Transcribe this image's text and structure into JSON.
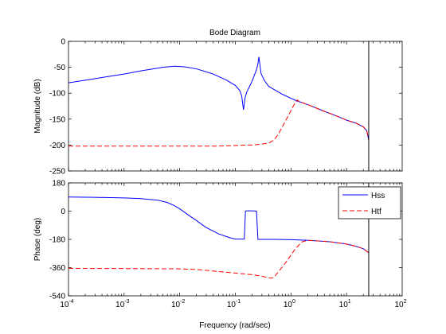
{
  "chart_data": {
    "type": "line",
    "title": "Bode Diagram",
    "xlabel": "Frequency  (rad/sec)",
    "x_scale": "log",
    "xlim": [
      0.0001,
      100
    ],
    "x_tick_labels": [
      {
        "base": "10",
        "exp": "-4"
      },
      {
        "base": "10",
        "exp": "-3"
      },
      {
        "base": "10",
        "exp": "-2"
      },
      {
        "base": "10",
        "exp": "-1"
      },
      {
        "base": "10",
        "exp": "0"
      },
      {
        "base": "10",
        "exp": "1"
      },
      {
        "base": "10",
        "exp": "2"
      }
    ],
    "legend": {
      "placement": "top-right",
      "entries": [
        "Hss",
        "Htf"
      ]
    },
    "grid": false,
    "vertical_marker_x": 25,
    "series_styles": [
      {
        "color": "#0000ff",
        "dash": "solid"
      },
      {
        "color": "#ff0000",
        "dash": "dashed"
      }
    ],
    "subplots": [
      {
        "ylabel": "Magnitude (dB)",
        "ylim": [
          -250,
          0
        ],
        "yticks": [
          0,
          -50,
          -100,
          -150,
          -200,
          -250
        ],
        "series": [
          {
            "x": [
              0.0001,
              0.0002,
              0.0005,
              0.001,
              0.002,
              0.005,
              0.008,
              0.012,
              0.02,
              0.04,
              0.07,
              0.1,
              0.12,
              0.13,
              0.14,
              0.15,
              0.16,
              0.18,
              0.2,
              0.22,
              0.24,
              0.255,
              0.265,
              0.275,
              0.29,
              0.33,
              0.4,
              0.5,
              0.7,
              1,
              1.3,
              2,
              4,
              7,
              10,
              15,
              20,
              23,
              25
            ],
            "y": [
              -80,
              -75,
              -68,
              -63,
              -57,
              -50,
              -48,
              -49,
              -53,
              -63,
              -75,
              -85,
              -95,
              -105,
              -132,
              -108,
              -98,
              -87,
              -77,
              -65,
              -55,
              -43,
              -30,
              -43,
              -62,
              -75,
              -87,
              -93,
              -102,
              -110,
              -115,
              -122,
              -135,
              -145,
              -152,
              -158,
              -165,
              -172,
              -190
            ]
          },
          {
            "x": [
              0.0001,
              0.001,
              0.01,
              0.05,
              0.1,
              0.15,
              0.2,
              0.25,
              0.3,
              0.4,
              0.5,
              0.6,
              0.7,
              0.8,
              0.9,
              1.0,
              1.1,
              1.2,
              1.3,
              1.4,
              2,
              4,
              7,
              10,
              15,
              20,
              23,
              25
            ],
            "y": [
              -202,
              -202,
              -202,
              -202,
              -201,
              -200,
              -200,
              -199,
              -198,
              -196,
              -190,
              -178,
              -165,
              -153,
              -143,
              -133,
              -125,
              -118,
              -113,
              -116,
              -122,
              -135,
              -145,
              -152,
              -158,
              -165,
              -172,
              -190
            ]
          }
        ]
      },
      {
        "ylabel": "Phase (deg)",
        "ylim": [
          -540,
          180
        ],
        "yticks": [
          180,
          0,
          -180,
          -360,
          -540
        ],
        "series": [
          {
            "x": [
              0.0001,
              0.0003,
              0.001,
              0.002,
              0.004,
              0.006,
              0.008,
              0.01,
              0.015,
              0.02,
              0.03,
              0.05,
              0.08,
              0.1,
              0.145,
              0.152,
              0.16,
              0.2,
              0.24,
              0.255,
              0.265,
              0.3,
              0.5,
              1,
              2,
              5,
              10,
              15,
              20,
              25
            ],
            "y": [
              90,
              88,
              84,
              80,
              70,
              55,
              35,
              15,
              -30,
              -60,
              -105,
              -145,
              -170,
              -178,
              -178,
              0,
              2,
              2,
              0,
              -180,
              -180,
              -180,
              -180,
              -182,
              -186,
              -195,
              -210,
              -225,
              -240,
              -265
            ]
          },
          {
            "x": [
              0.0001,
              0.001,
              0.01,
              0.02,
              0.05,
              0.1,
              0.2,
              0.3,
              0.4,
              0.45,
              0.5,
              0.6,
              0.8,
              1.0,
              1.2,
              1.4,
              1.6,
              2,
              5,
              10,
              15,
              20,
              25
            ],
            "y": [
              -365,
              -366,
              -368,
              -372,
              -385,
              -395,
              -405,
              -415,
              -425,
              -428,
              -420,
              -385,
              -330,
              -280,
              -240,
              -215,
              -195,
              -186,
              -195,
              -210,
              -225,
              -240,
              -265
            ]
          }
        ]
      }
    ]
  }
}
